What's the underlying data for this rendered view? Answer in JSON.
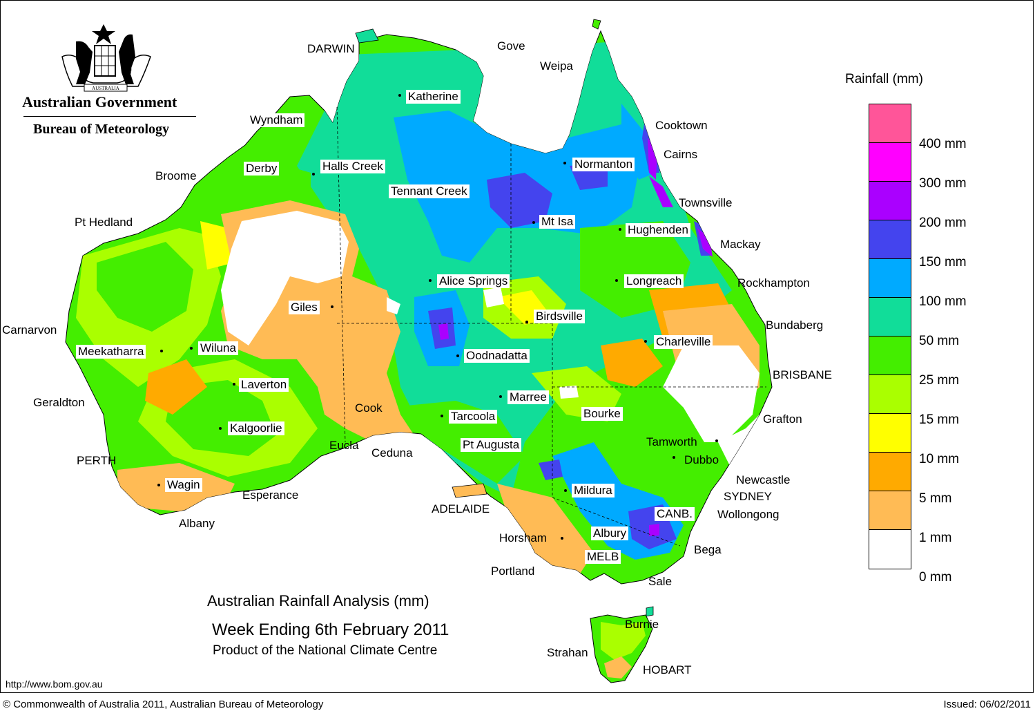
{
  "header": {
    "gov_name": "Australian Government",
    "bureau_name": "Bureau of Meteorology",
    "crest_text": "AUSTRALIA"
  },
  "title": {
    "line1": "Australian Rainfall Analysis (mm)",
    "line2": "Week Ending 6th February 2011",
    "line3": "Product of the National Climate Centre"
  },
  "legend": {
    "title": "Rainfall (mm)",
    "swatch_colors": [
      "#ff5599",
      "#ff00ff",
      "#aa00ff",
      "#4444ee",
      "#00aaff",
      "#11dd99",
      "#44ee00",
      "#aaff00",
      "#ffff00",
      "#ffaa00",
      "#ffbb55",
      "#ffffff"
    ],
    "labels": [
      "400 mm",
      "300 mm",
      "200 mm",
      "150 mm",
      "100 mm",
      "50 mm",
      "25 mm",
      "15 mm",
      "10 mm",
      "5 mm",
      "1 mm",
      "0 mm"
    ]
  },
  "cities": {
    "darwin": "DARWIN",
    "gove": "Gove",
    "weipa": "Weipa",
    "katherine": "Katherine",
    "wyndham": "Wyndham",
    "cooktown": "Cooktown",
    "cairns": "Cairns",
    "normanton": "Normanton",
    "derby": "Derby",
    "halls_creek": "Halls Creek",
    "broome": "Broome",
    "tennant_creek": "Tennant Creek",
    "townsville": "Townsville",
    "pt_hedland": "Pt Hedland",
    "mt_isa": "Mt Isa",
    "hughenden": "Hughenden",
    "mackay": "Mackay",
    "alice_springs": "Alice Springs",
    "longreach": "Longreach",
    "rockhampton": "Rockhampton",
    "giles": "Giles",
    "birdsville": "Birdsville",
    "bundaberg": "Bundaberg",
    "carnarvon": "Carnarvon",
    "charleville": "Charleville",
    "meekatharra": "Meekatharra",
    "wiluna": "Wiluna",
    "oodnadatta": "Oodnadatta",
    "brisbane": "BRISBANE",
    "laverton": "Laverton",
    "marree": "Marree",
    "geraldton": "Geraldton",
    "cook": "Cook",
    "tarcoola": "Tarcoola",
    "bourke": "Bourke",
    "grafton": "Grafton",
    "kalgoorlie": "Kalgoorlie",
    "eucla": "Eucla",
    "pt_augusta": "Pt Augusta",
    "tamworth": "Tamworth",
    "ceduna": "Ceduna",
    "perth": "PERTH",
    "dubbo": "Dubbo",
    "newcastle": "Newcastle",
    "wagin": "Wagin",
    "mildura": "Mildura",
    "esperance": "Esperance",
    "sydney": "SYDNEY",
    "adelaide": "ADELAIDE",
    "canb": "CANB.",
    "wollongong": "Wollongong",
    "albany": "Albany",
    "albury": "Albury",
    "horsham": "Horsham",
    "bega": "Bega",
    "melb": "MELB",
    "portland": "Portland",
    "sale": "Sale",
    "burnie": "Burnie",
    "strahan": "Strahan",
    "hobart": "HOBART"
  },
  "footer": {
    "url": "http://www.bom.gov.au",
    "copyright": "© Commonwealth of Australia 2011, Australian Bureau of Meteorology",
    "issued": "Issued: 06/02/2011"
  }
}
